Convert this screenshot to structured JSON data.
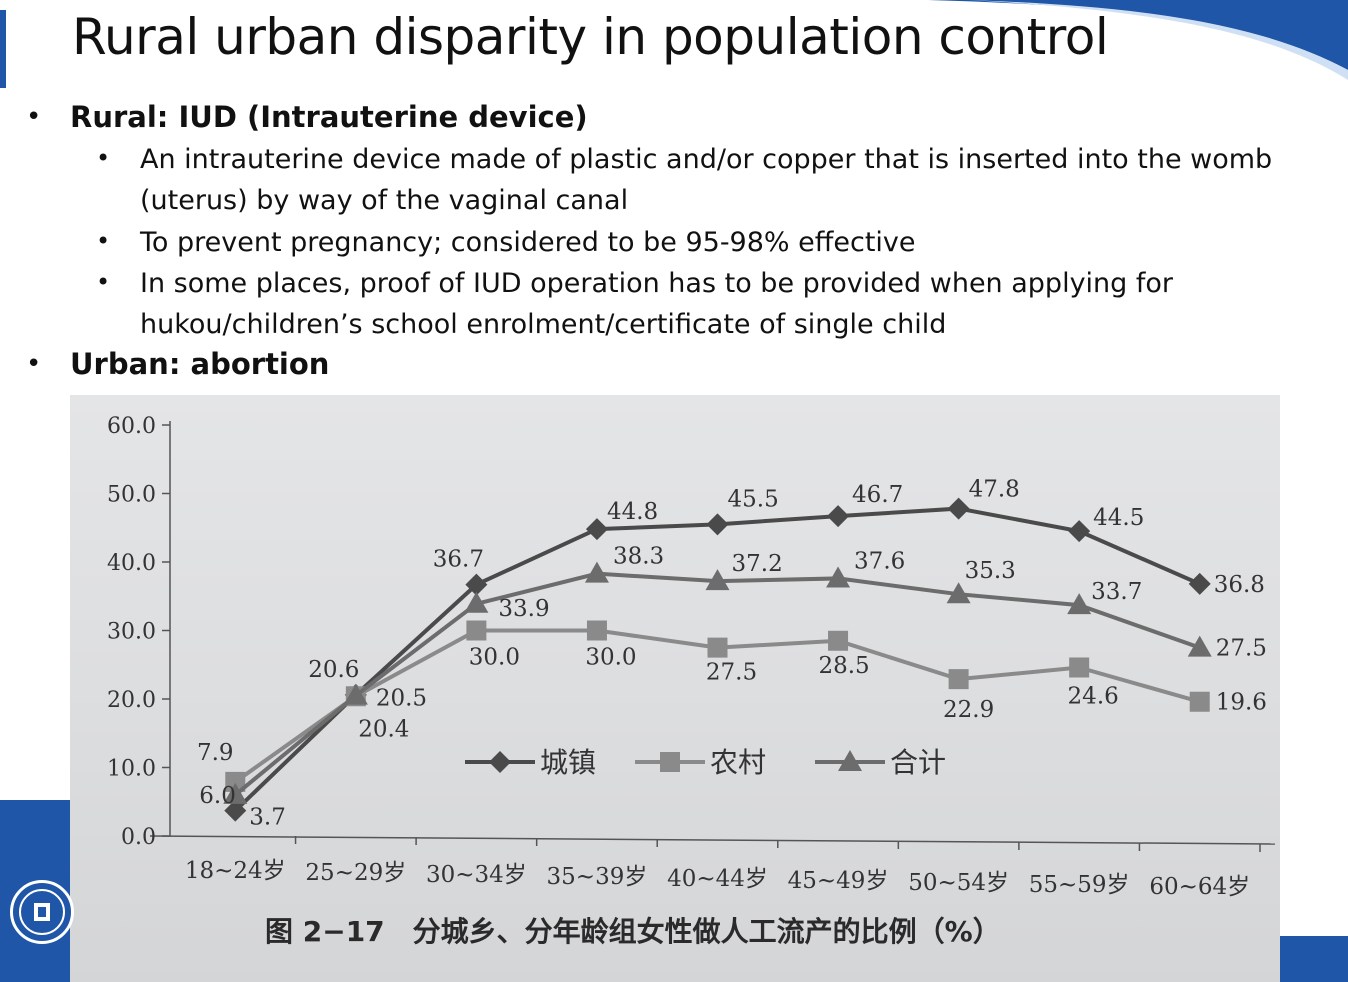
{
  "title": "Rural urban disparity in population control",
  "bullets": {
    "rural": {
      "label": "Rural: IUD (Intrauterine device)",
      "subs": [
        "An intrauterine device made of plastic and/or copper that is inserted into the womb (uterus) by way of the vaginal canal",
        "To prevent pregnancy; considered to be 95-98% effective",
        "In some places, proof of IUD operation has to be provided when applying for hukou/children’s school enrolment/certificate of single child"
      ]
    },
    "urban": {
      "label": "Urban: abortion"
    }
  },
  "chart_data": {
    "type": "line",
    "title": "图 2−17　分城乡、分年龄组女性做人工流产的比例（%）",
    "categories": [
      "18~24岁",
      "25~29岁",
      "30~34岁",
      "35~39岁",
      "40~44岁",
      "45~49岁",
      "50~54岁",
      "55~59岁",
      "60~64岁"
    ],
    "series": [
      {
        "name": "城镇",
        "marker": "diamond",
        "color": "#4a4a4a",
        "values": [
          3.7,
          20.6,
          36.7,
          44.8,
          45.5,
          46.7,
          47.8,
          44.5,
          36.8
        ]
      },
      {
        "name": "农村",
        "marker": "square",
        "color": "#8a8a8a",
        "values": [
          7.9,
          20.4,
          30.0,
          30.0,
          27.5,
          28.5,
          22.9,
          24.6,
          19.6
        ]
      },
      {
        "name": "合计",
        "marker": "triangle",
        "color": "#6c6c6c",
        "values": [
          6.0,
          20.5,
          33.9,
          38.3,
          37.2,
          37.6,
          35.3,
          33.7,
          27.5
        ]
      }
    ],
    "y_ticks": [
      "0.0",
      "10.0",
      "20.0",
      "30.0",
      "40.0",
      "50.0",
      "60.0"
    ],
    "ylim": [
      0,
      60
    ],
    "xlabel": "",
    "ylabel": "",
    "legend": "center"
  }
}
